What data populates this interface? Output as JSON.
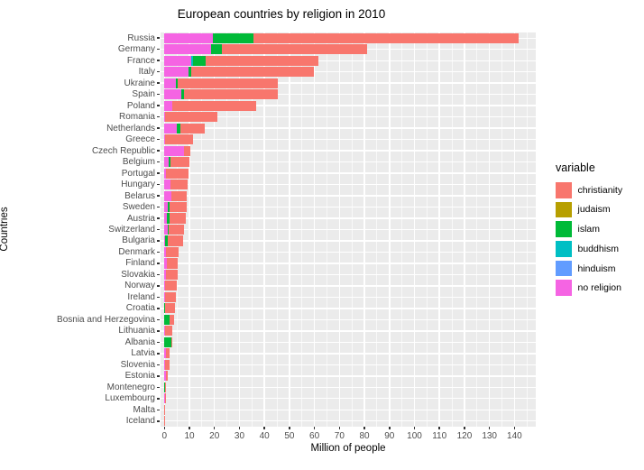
{
  "chart_data": {
    "type": "bar",
    "orientation": "horizontal",
    "stacked": true,
    "title": "European countries by religion in 2010",
    "xlabel": "Million of people",
    "ylabel": "Countries",
    "xlim": [
      0,
      148
    ],
    "xticks": [
      0,
      10,
      20,
      30,
      40,
      50,
      60,
      70,
      80,
      90,
      100,
      110,
      120,
      130,
      140
    ],
    "grid": "major and minor vertical white gridlines on gray panel, horizontal line per category",
    "panel_bg": "#EBEBEB",
    "legend": {
      "title": "variable",
      "position": "right"
    },
    "stack_order_left_to_right": [
      "no religion",
      "hinduism",
      "buddhism",
      "islam",
      "judaism",
      "christianity"
    ],
    "categories": [
      "Russia",
      "Germany",
      "France",
      "Italy",
      "Ukraine",
      "Spain",
      "Poland",
      "Romania",
      "Netherlands",
      "Greece",
      "Czech Republic",
      "Belgium",
      "Portugal",
      "Hungary",
      "Belarus",
      "Sweden",
      "Austria",
      "Switzerland",
      "Bulgaria",
      "Denmark",
      "Finland",
      "Slovakia",
      "Norway",
      "Ireland",
      "Croatia",
      "Bosnia and Herzegovina",
      "Lithuania",
      "Albania",
      "Latvia",
      "Slovenia",
      "Estonia",
      "Montenegro",
      "Luxembourg",
      "Malta",
      "Iceland"
    ],
    "series": [
      {
        "name": "christianity",
        "color": "#F8766D",
        "values": [
          106,
          58.1,
          45.1,
          48.8,
          40,
          37.4,
          33.5,
          20.8,
          9.9,
          11.3,
          2.3,
          7.7,
          8.9,
          6.9,
          6.2,
          6.7,
          6.5,
          6.1,
          6.2,
          5,
          4.5,
          4.7,
          4.6,
          4.2,
          4.1,
          1.8,
          3,
          0.6,
          1.7,
          1.7,
          0.55,
          0.5,
          0.4,
          0.4,
          0.3
        ]
      },
      {
        "name": "judaism",
        "color": "#B79F00",
        "values": [
          0,
          0,
          0,
          0,
          0,
          0,
          0,
          0,
          0,
          0,
          0,
          0,
          0,
          0,
          0,
          0,
          0,
          0,
          0,
          0,
          0,
          0,
          0,
          0,
          0,
          0,
          0,
          0,
          0,
          0,
          0,
          0,
          0,
          0,
          0
        ]
      },
      {
        "name": "islam",
        "color": "#00BA38",
        "values": [
          16,
          4.2,
          5,
          1,
          0.9,
          1,
          0,
          0,
          1.4,
          0,
          0,
          0.6,
          0,
          0,
          0,
          0.9,
          0.9,
          0.4,
          1,
          0,
          0,
          0,
          0.2,
          0,
          0.1,
          2,
          0,
          2.6,
          0,
          0,
          0,
          0.1,
          0,
          0,
          0
        ]
      },
      {
        "name": "buddhism",
        "color": "#00BFC4",
        "values": [
          0,
          0,
          0.8,
          0,
          0,
          0,
          0,
          0,
          0,
          0,
          0,
          0,
          0,
          0,
          0,
          0,
          0,
          0,
          0,
          0,
          0,
          0,
          0,
          0,
          0,
          0,
          0,
          0,
          0,
          0,
          0,
          0,
          0,
          0,
          0
        ]
      },
      {
        "name": "hinduism",
        "color": "#619CFF",
        "values": [
          0,
          0,
          0,
          0,
          0,
          0,
          0,
          0,
          0,
          0,
          0,
          0,
          0,
          0,
          0,
          0,
          0,
          0,
          0,
          0,
          0,
          0,
          0,
          0,
          0,
          0,
          0,
          0,
          0,
          0,
          0,
          0,
          0,
          0,
          0
        ]
      },
      {
        "name": "no religion",
        "color": "#F564E3",
        "values": [
          19.5,
          18.7,
          10.6,
          9.8,
          4.5,
          6.9,
          3.3,
          0.4,
          5,
          0.3,
          7.9,
          1.8,
          0.7,
          2.4,
          2.7,
          1.2,
          1,
          1.3,
          0.2,
          0.5,
          0.9,
          0.7,
          0.1,
          0.3,
          0,
          0,
          0.3,
          0,
          0.5,
          0.3,
          0.75,
          0,
          0.1,
          0,
          0
        ]
      }
    ]
  }
}
